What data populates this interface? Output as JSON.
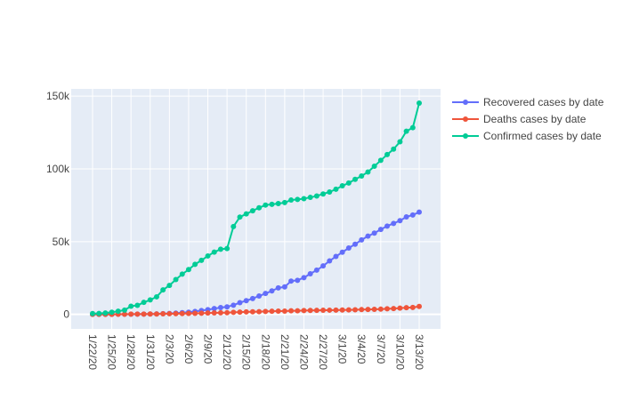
{
  "chart_data": {
    "type": "line",
    "title": "",
    "xlabel": "",
    "ylabel": "",
    "x": [
      "1/22/20",
      "1/23/20",
      "1/24/20",
      "1/25/20",
      "1/26/20",
      "1/27/20",
      "1/28/20",
      "1/29/20",
      "1/30/20",
      "1/31/20",
      "2/1/20",
      "2/2/20",
      "2/3/20",
      "2/4/20",
      "2/5/20",
      "2/6/20",
      "2/7/20",
      "2/8/20",
      "2/9/20",
      "2/10/20",
      "2/11/20",
      "2/12/20",
      "2/13/20",
      "2/14/20",
      "2/15/20",
      "2/16/20",
      "2/17/20",
      "2/18/20",
      "2/19/20",
      "2/20/20",
      "2/21/20",
      "2/22/20",
      "2/23/20",
      "2/24/20",
      "2/25/20",
      "2/26/20",
      "2/27/20",
      "2/28/20",
      "2/29/20",
      "3/1/20",
      "3/2/20",
      "3/3/20",
      "3/4/20",
      "3/5/20",
      "3/6/20",
      "3/7/20",
      "3/8/20",
      "3/9/20",
      "3/10/20",
      "3/11/20",
      "3/12/20",
      "3/13/20"
    ],
    "x_tick_labels": [
      "1/22/20",
      "1/25/20",
      "1/28/20",
      "1/31/20",
      "2/3/20",
      "2/6/20",
      "2/9/20",
      "2/12/20",
      "2/15/20",
      "2/18/20",
      "2/21/20",
      "2/24/20",
      "2/27/20",
      "3/1/20",
      "3/4/20",
      "3/7/20",
      "3/10/20",
      "3/13/20"
    ],
    "y_ticks": [
      0,
      50000,
      100000,
      150000
    ],
    "y_tick_labels": [
      "0",
      "50k",
      "100k",
      "150k"
    ],
    "ylim": [
      -10000,
      155000
    ],
    "grid": true,
    "legend_position": "top-right",
    "series": [
      {
        "name": "Recovered cases by date",
        "color": "#636efa",
        "values": [
          28,
          30,
          36,
          39,
          52,
          61,
          107,
          126,
          143,
          222,
          284,
          472,
          623,
          852,
          1124,
          1487,
          2011,
          2616,
          3244,
          3946,
          4683,
          5150,
          6295,
          8058,
          9395,
          10865,
          12583,
          14352,
          16121,
          18177,
          18890,
          22886,
          23394,
          25227,
          27905,
          30384,
          33277,
          36711,
          39782,
          42716,
          45602,
          48228,
          51170,
          53796,
          55865,
          58358,
          60695,
          62512,
          64404,
          67003,
          68324,
          70251
        ]
      },
      {
        "name": "Deaths cases by date",
        "color": "#ef553b",
        "values": [
          17,
          18,
          26,
          42,
          56,
          82,
          131,
          133,
          171,
          213,
          259,
          362,
          426,
          492,
          564,
          634,
          719,
          806,
          906,
          1013,
          1113,
          1118,
          1371,
          1523,
          1666,
          1770,
          1868,
          2007,
          2122,
          2247,
          2251,
          2458,
          2469,
          2629,
          2708,
          2770,
          2814,
          2872,
          2941,
          2996,
          3085,
          3160,
          3254,
          3348,
          3460,
          3558,
          3803,
          3996,
          4262,
          4615,
          4720,
          5404
        ]
      },
      {
        "name": "Confirmed cases by date",
        "color": "#00cc96",
        "values": [
          555,
          654,
          941,
          1434,
          2118,
          2927,
          5578,
          6166,
          8234,
          9927,
          12038,
          16787,
          19881,
          23892,
          27635,
          30794,
          34391,
          37120,
          40150,
          42762,
          44802,
          45221,
          60368,
          66885,
          69030,
          71224,
          73258,
          75136,
          75639,
          76197,
          76819,
          78572,
          78958,
          79561,
          80406,
          81388,
          82746,
          84112,
          86011,
          88369,
          90306,
          92840,
          95120,
          97886,
          101801,
          105847,
          109821,
          113590,
          118620,
          125875,
          128352,
          145205
        ]
      }
    ]
  }
}
